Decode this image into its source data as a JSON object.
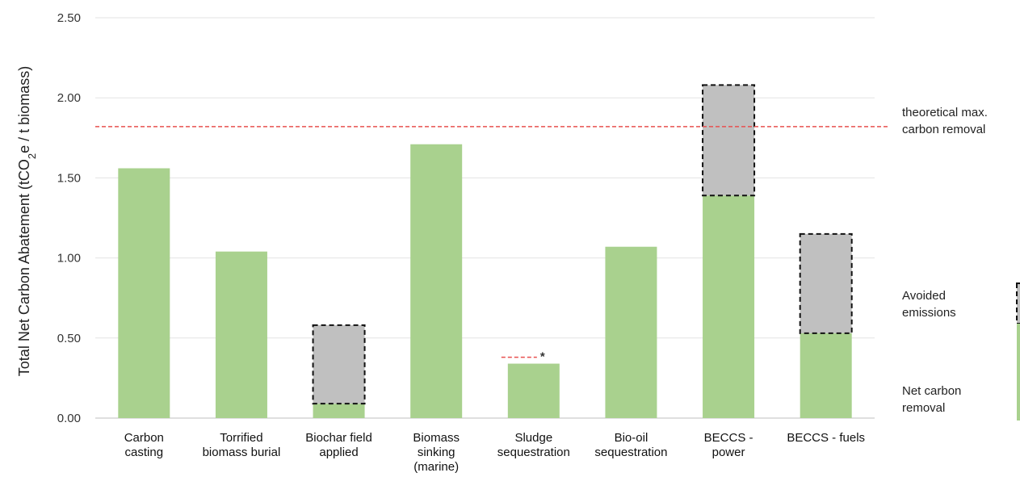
{
  "chart_data": {
    "type": "bar",
    "ylabel_main": "Total Net Carbon Abatement (tCO",
    "ylabel_sub": "2",
    "ylabel_tail": "e / t biomass)",
    "ylim": [
      0,
      2.5
    ],
    "yticks": [
      "0.00",
      "0.50",
      "1.00",
      "1.50",
      "2.00",
      "2.50"
    ],
    "categories": [
      [
        "Carbon",
        "casting"
      ],
      [
        "Torrified",
        "biomass burial"
      ],
      [
        "Biochar field",
        "applied"
      ],
      [
        "Biomass",
        "sinking",
        "(marine)"
      ],
      [
        "Sludge",
        "sequestration"
      ],
      [
        "Bio-oil",
        "sequestration"
      ],
      [
        "BECCS -",
        "power"
      ],
      [
        "BECCS - fuels"
      ]
    ],
    "series": [
      {
        "name": "Net carbon removal",
        "color": "#a9d18e",
        "values": [
          1.56,
          1.04,
          0.09,
          1.71,
          0.34,
          1.07,
          1.39,
          0.53
        ]
      },
      {
        "name": "Avoided emissions",
        "color": "#c0c0c0",
        "values": [
          0,
          0,
          0.49,
          0,
          0,
          0,
          0.69,
          0.62
        ]
      }
    ],
    "reference_line": {
      "value": 1.82,
      "label": [
        "theoretical max.",
        "carbon removal"
      ],
      "color": "#e8504f"
    },
    "sludge_marker": {
      "value": 0.38,
      "symbol": "*"
    },
    "grid": true,
    "legend_position": "right",
    "legend": [
      {
        "key": "avoided",
        "label": [
          "Avoided",
          "emissions"
        ]
      },
      {
        "key": "net",
        "label": [
          "Net carbon",
          "removal"
        ]
      }
    ]
  }
}
